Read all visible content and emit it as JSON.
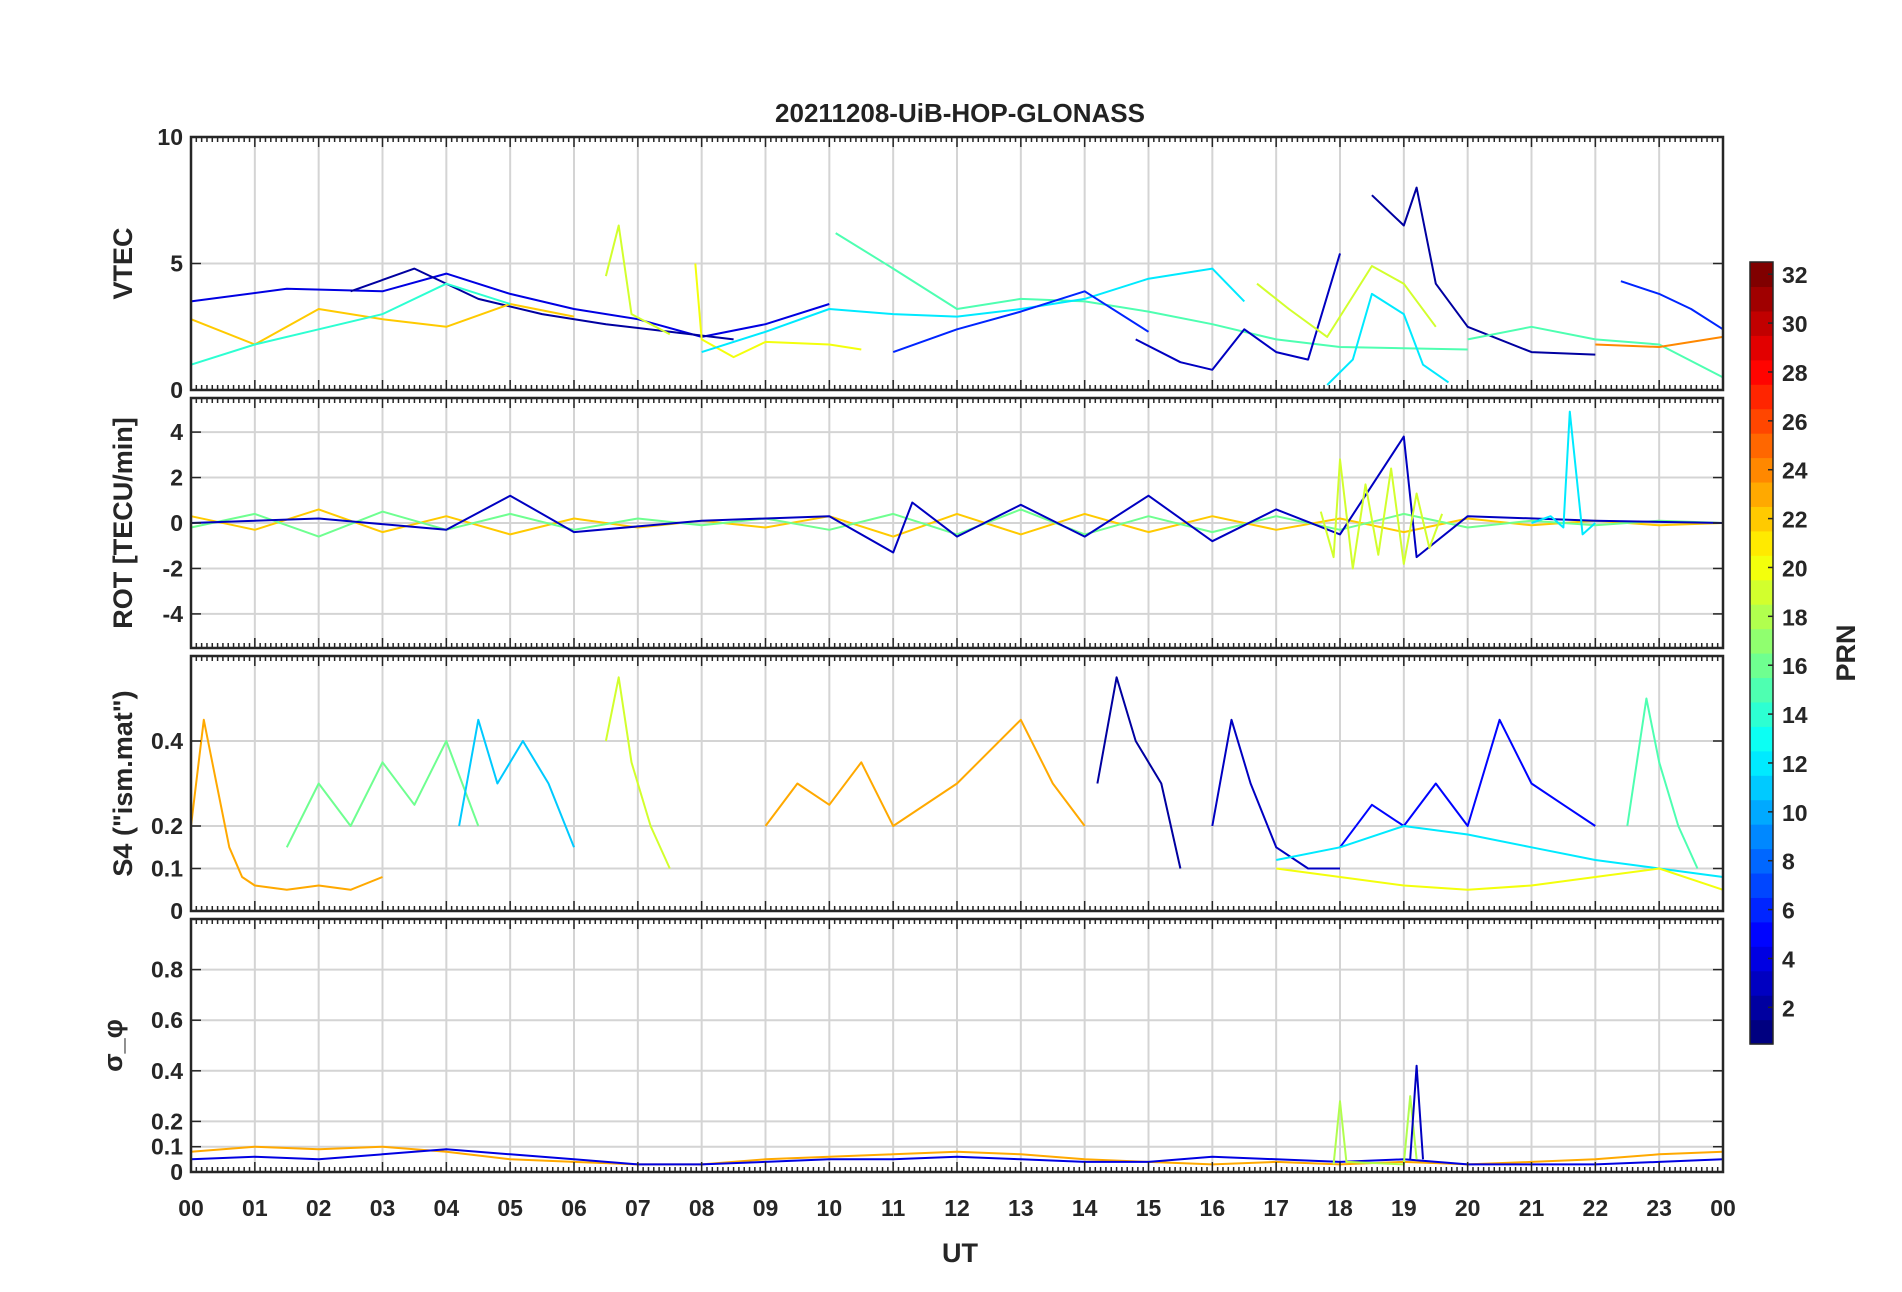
{
  "chart_data": {
    "type": "line",
    "title": "20211208-UiB-HOP-GLONASS",
    "xlabel": "UT",
    "x_tick_labels": [
      "00",
      "01",
      "02",
      "03",
      "04",
      "05",
      "06",
      "07",
      "08",
      "09",
      "10",
      "11",
      "12",
      "13",
      "14",
      "15",
      "16",
      "17",
      "18",
      "19",
      "20",
      "21",
      "22",
      "23",
      "00"
    ],
    "x_range_hours": [
      0,
      24
    ],
    "grid": true,
    "colorbar": {
      "label": "PRN",
      "range": [
        1,
        32
      ],
      "tick_labels": [
        "2",
        "4",
        "6",
        "8",
        "10",
        "12",
        "14",
        "16",
        "18",
        "20",
        "22",
        "24",
        "26",
        "28",
        "30",
        "32"
      ],
      "colormap": "jet"
    },
    "panels": [
      {
        "id": "vtec",
        "ylabel": "VTEC",
        "ylim": [
          0,
          10
        ],
        "y_ticks": [
          0,
          5,
          10
        ],
        "y_tick_labels": [
          "0",
          "5",
          "10"
        ],
        "series": [
          {
            "prn": 4,
            "x": [
              0.0,
              1.5,
              3.0,
              4.0,
              5.0,
              6.0,
              7.0,
              8.0,
              9.0,
              10.0
            ],
            "y": [
              3.5,
              4.0,
              3.9,
              4.6,
              3.8,
              3.2,
              2.8,
              2.1,
              2.6,
              3.4
            ]
          },
          {
            "prn": 2,
            "x": [
              2.5,
              3.5,
              4.5,
              5.5,
              6.5,
              7.5,
              8.5
            ],
            "y": [
              3.9,
              4.8,
              3.6,
              3.0,
              2.6,
              2.3,
              2.0
            ]
          },
          {
            "prn": 22,
            "x": [
              0.0,
              1.0,
              2.0,
              3.0,
              4.0,
              5.0,
              6.0
            ],
            "y": [
              2.8,
              1.8,
              3.2,
              2.8,
              2.5,
              3.4,
              2.9
            ]
          },
          {
            "prn": 14,
            "x": [
              0.0,
              1.0,
              2.0,
              3.0,
              4.0,
              5.0
            ],
            "y": [
              1.0,
              1.8,
              2.4,
              3.0,
              4.2,
              3.4
            ]
          },
          {
            "prn": 19,
            "x": [
              6.5,
              6.7,
              6.9,
              7.5
            ],
            "y": [
              4.5,
              6.5,
              3.0,
              2.2
            ]
          },
          {
            "prn": 20,
            "x": [
              7.9,
              8.0,
              8.5,
              9.0,
              10.0,
              10.5
            ],
            "y": [
              5.0,
              2.0,
              1.3,
              1.9,
              1.8,
              1.6
            ]
          },
          {
            "prn": 15,
            "x": [
              10.1,
              11.0,
              12.0,
              13.0,
              14.0,
              15.0,
              16.0,
              17.0,
              18.0,
              20.0
            ],
            "y": [
              6.2,
              4.8,
              3.2,
              3.6,
              3.5,
              3.1,
              2.6,
              2.0,
              1.7,
              1.6
            ]
          },
          {
            "prn": 12,
            "x": [
              8.0,
              9.0,
              10.0,
              11.0,
              12.0,
              13.0,
              14.0,
              15.0,
              16.0,
              16.5
            ],
            "y": [
              1.5,
              2.3,
              3.2,
              3.0,
              2.9,
              3.2,
              3.6,
              4.4,
              4.8,
              3.5
            ]
          },
          {
            "prn": 6,
            "x": [
              11.0,
              12.0,
              13.0,
              14.0,
              15.0
            ],
            "y": [
              1.5,
              2.4,
              3.1,
              3.9,
              2.3
            ]
          },
          {
            "prn": 3,
            "x": [
              14.8,
              15.5,
              16.0,
              16.5,
              17.0,
              17.5,
              18.0
            ],
            "y": [
              2.0,
              1.1,
              0.8,
              2.4,
              1.5,
              1.2,
              5.4
            ]
          },
          {
            "prn": 2,
            "x": [
              18.5,
              19.0,
              19.2,
              19.5,
              20.0,
              21.0,
              22.0
            ],
            "y": [
              7.7,
              6.5,
              8.0,
              4.2,
              2.5,
              1.5,
              1.4
            ]
          },
          {
            "prn": 19,
            "x": [
              16.7,
              17.2,
              17.8,
              18.5,
              19.0,
              19.5
            ],
            "y": [
              4.2,
              3.2,
              2.1,
              4.9,
              4.2,
              2.5
            ]
          },
          {
            "prn": 12,
            "x": [
              17.8,
              18.2,
              18.5,
              19.0,
              19.3,
              19.7
            ],
            "y": [
              0.2,
              1.2,
              3.8,
              3.0,
              1.0,
              0.3
            ]
          },
          {
            "prn": 6,
            "x": [
              22.4,
              23.0,
              23.5,
              24.0
            ],
            "y": [
              4.3,
              3.8,
              3.2,
              2.4
            ]
          },
          {
            "prn": 15,
            "x": [
              20.0,
              21.0,
              22.0,
              23.0,
              24.0
            ],
            "y": [
              2.0,
              2.5,
              2.0,
              1.8,
              0.5
            ]
          },
          {
            "prn": 24,
            "x": [
              22.0,
              23.0,
              24.0
            ],
            "y": [
              1.8,
              1.7,
              2.1
            ]
          }
        ]
      },
      {
        "id": "rot",
        "ylabel": "ROT [TECU/min]",
        "ylim": [
          -5.5,
          5.5
        ],
        "y_ticks": [
          -4,
          -2,
          0,
          2,
          4
        ],
        "y_tick_labels": [
          "-4",
          "-2",
          "0",
          "2",
          "4"
        ],
        "series": [
          {
            "prn": 22,
            "x": [
              0,
              1,
              2,
              3,
              4,
              5,
              6,
              7,
              8,
              9,
              10,
              11,
              12,
              13,
              14,
              15,
              16,
              17,
              18,
              19,
              20,
              21,
              22,
              23,
              24
            ],
            "y": [
              0.3,
              -0.3,
              0.6,
              -0.4,
              0.3,
              -0.5,
              0.2,
              -0.2,
              0.1,
              -0.2,
              0.3,
              -0.6,
              0.4,
              -0.5,
              0.4,
              -0.4,
              0.3,
              -0.3,
              0.2,
              -0.4,
              0.2,
              -0.1,
              0.1,
              -0.1,
              0.0
            ]
          },
          {
            "prn": 16,
            "x": [
              0,
              1,
              2,
              3,
              4,
              5,
              6,
              7,
              8,
              9,
              10,
              11,
              12,
              13,
              14,
              15,
              16,
              17,
              18,
              19,
              20,
              21,
              22,
              23,
              24
            ],
            "y": [
              -0.2,
              0.4,
              -0.6,
              0.5,
              -0.3,
              0.4,
              -0.3,
              0.2,
              -0.1,
              0.2,
              -0.3,
              0.4,
              -0.5,
              0.6,
              -0.5,
              0.3,
              -0.4,
              0.3,
              -0.3,
              0.4,
              -0.2,
              0.1,
              -0.1,
              0.1,
              0.0
            ]
          },
          {
            "prn": 3,
            "x": [
              0,
              2,
              4,
              5,
              6,
              8,
              10,
              11,
              11.3,
              12,
              13,
              14,
              15,
              16,
              17,
              18,
              19,
              19.2,
              20,
              22,
              24
            ],
            "y": [
              0.0,
              0.2,
              -0.3,
              1.2,
              -0.4,
              0.1,
              0.3,
              -1.3,
              0.9,
              -0.6,
              0.8,
              -0.6,
              1.2,
              -0.8,
              0.6,
              -0.5,
              3.8,
              -1.5,
              0.3,
              0.1,
              0.0
            ]
          },
          {
            "prn": 19,
            "x": [
              17.7,
              17.9,
              18.0,
              18.2,
              18.4,
              18.6,
              18.8,
              19.0,
              19.2,
              19.4,
              19.6
            ],
            "y": [
              0.5,
              -1.5,
              2.8,
              -2.0,
              1.7,
              -1.4,
              2.4,
              -1.8,
              1.3,
              -1.1,
              0.4
            ]
          },
          {
            "prn": 12,
            "x": [
              21.0,
              21.3,
              21.5,
              21.6,
              21.8,
              22.0
            ],
            "y": [
              0.0,
              0.3,
              -0.2,
              4.9,
              -0.5,
              0.0
            ]
          }
        ]
      },
      {
        "id": "s4",
        "ylabel": "S4 (\"ism.mat\")",
        "ylim": [
          0,
          0.6
        ],
        "y_ticks": [
          0,
          0.1,
          0.2,
          0.4
        ],
        "y_tick_labels": [
          "0",
          "0.1",
          "0.2",
          "0.4"
        ],
        "series": [
          {
            "prn": 23,
            "x": [
              0.0,
              0.2,
              0.4,
              0.6,
              0.8,
              1.0,
              1.5,
              2.0,
              2.5,
              3.0
            ],
            "y": [
              0.2,
              0.45,
              0.3,
              0.15,
              0.08,
              0.06,
              0.05,
              0.06,
              0.05,
              0.08
            ]
          },
          {
            "prn": 16,
            "x": [
              1.5,
              2.0,
              2.5,
              3.0,
              3.5,
              4.0,
              4.5
            ],
            "y": [
              0.15,
              0.3,
              0.2,
              0.35,
              0.25,
              0.4,
              0.2
            ]
          },
          {
            "prn": 11,
            "x": [
              4.2,
              4.5,
              4.8,
              5.2,
              5.6,
              6.0
            ],
            "y": [
              0.2,
              0.45,
              0.3,
              0.4,
              0.3,
              0.15
            ]
          },
          {
            "prn": 19,
            "x": [
              6.5,
              6.7,
              6.9,
              7.2,
              7.5
            ],
            "y": [
              0.4,
              0.55,
              0.35,
              0.2,
              0.1
            ]
          },
          {
            "prn": 23,
            "x": [
              9.0,
              9.5,
              10.0,
              10.5,
              11.0,
              12.0,
              13.0,
              13.5,
              14.0
            ],
            "y": [
              0.2,
              0.3,
              0.25,
              0.35,
              0.2,
              0.3,
              0.45,
              0.3,
              0.2
            ]
          },
          {
            "prn": 2,
            "x": [
              14.2,
              14.5,
              14.8,
              15.2,
              15.5
            ],
            "y": [
              0.3,
              0.55,
              0.4,
              0.3,
              0.1
            ]
          },
          {
            "prn": 3,
            "x": [
              16.0,
              16.3,
              16.6,
              17.0,
              17.5,
              18.0
            ],
            "y": [
              0.2,
              0.45,
              0.3,
              0.15,
              0.1,
              0.1
            ]
          },
          {
            "prn": 5,
            "x": [
              18.0,
              18.5,
              19.0,
              19.5,
              20.0,
              20.5,
              21.0,
              21.5,
              22.0
            ],
            "y": [
              0.15,
              0.25,
              0.2,
              0.3,
              0.2,
              0.45,
              0.3,
              0.25,
              0.2
            ]
          },
          {
            "prn": 15,
            "x": [
              22.5,
              22.8,
              23.0,
              23.3,
              23.6
            ],
            "y": [
              0.2,
              0.5,
              0.35,
              0.2,
              0.1
            ]
          },
          {
            "prn": 12,
            "x": [
              17.0,
              18.0,
              19.0,
              20.0,
              21.0,
              22.0,
              23.0,
              24.0
            ],
            "y": [
              0.12,
              0.15,
              0.2,
              0.18,
              0.15,
              0.12,
              0.1,
              0.08
            ]
          },
          {
            "prn": 20,
            "x": [
              17.0,
              18.0,
              19.0,
              20.0,
              21.0,
              22.0,
              23.0,
              24.0
            ],
            "y": [
              0.1,
              0.08,
              0.06,
              0.05,
              0.06,
              0.08,
              0.1,
              0.05
            ]
          }
        ]
      },
      {
        "id": "sigma_phi",
        "ylabel": "σ_φ",
        "ylim": [
          0,
          1.0
        ],
        "y_ticks": [
          0,
          0.1,
          0.2,
          0.4,
          0.6,
          0.8
        ],
        "y_tick_labels": [
          "0",
          "0.1",
          "0.2",
          "0.4",
          "0.6",
          "0.8"
        ],
        "series": [
          {
            "prn": 23,
            "x": [
              0,
              1,
              2,
              3,
              4,
              5,
              6,
              7,
              8,
              9,
              10,
              11,
              12,
              13,
              14,
              15,
              16,
              17,
              18,
              19,
              20,
              21,
              22,
              23,
              24
            ],
            "y": [
              0.08,
              0.1,
              0.09,
              0.1,
              0.08,
              0.05,
              0.04,
              0.03,
              0.03,
              0.05,
              0.06,
              0.07,
              0.08,
              0.07,
              0.05,
              0.04,
              0.03,
              0.04,
              0.03,
              0.04,
              0.03,
              0.04,
              0.05,
              0.07,
              0.08
            ]
          },
          {
            "prn": 4,
            "x": [
              0,
              1,
              2,
              3,
              4,
              5,
              6,
              7,
              8,
              9,
              10,
              11,
              12,
              13,
              14,
              15,
              16,
              17,
              18,
              19,
              20,
              21,
              22,
              23,
              24
            ],
            "y": [
              0.05,
              0.06,
              0.05,
              0.07,
              0.09,
              0.07,
              0.05,
              0.03,
              0.03,
              0.04,
              0.05,
              0.05,
              0.06,
              0.05,
              0.04,
              0.04,
              0.06,
              0.05,
              0.04,
              0.05,
              0.03,
              0.03,
              0.03,
              0.04,
              0.05
            ]
          },
          {
            "prn": 18,
            "x": [
              17.9,
              18.0,
              18.1,
              19.0,
              19.1,
              19.2
            ],
            "y": [
              0.03,
              0.28,
              0.04,
              0.03,
              0.3,
              0.05
            ]
          },
          {
            "prn": 3,
            "x": [
              19.1,
              19.2,
              19.3
            ],
            "y": [
              0.05,
              0.42,
              0.05
            ]
          }
        ]
      }
    ]
  }
}
